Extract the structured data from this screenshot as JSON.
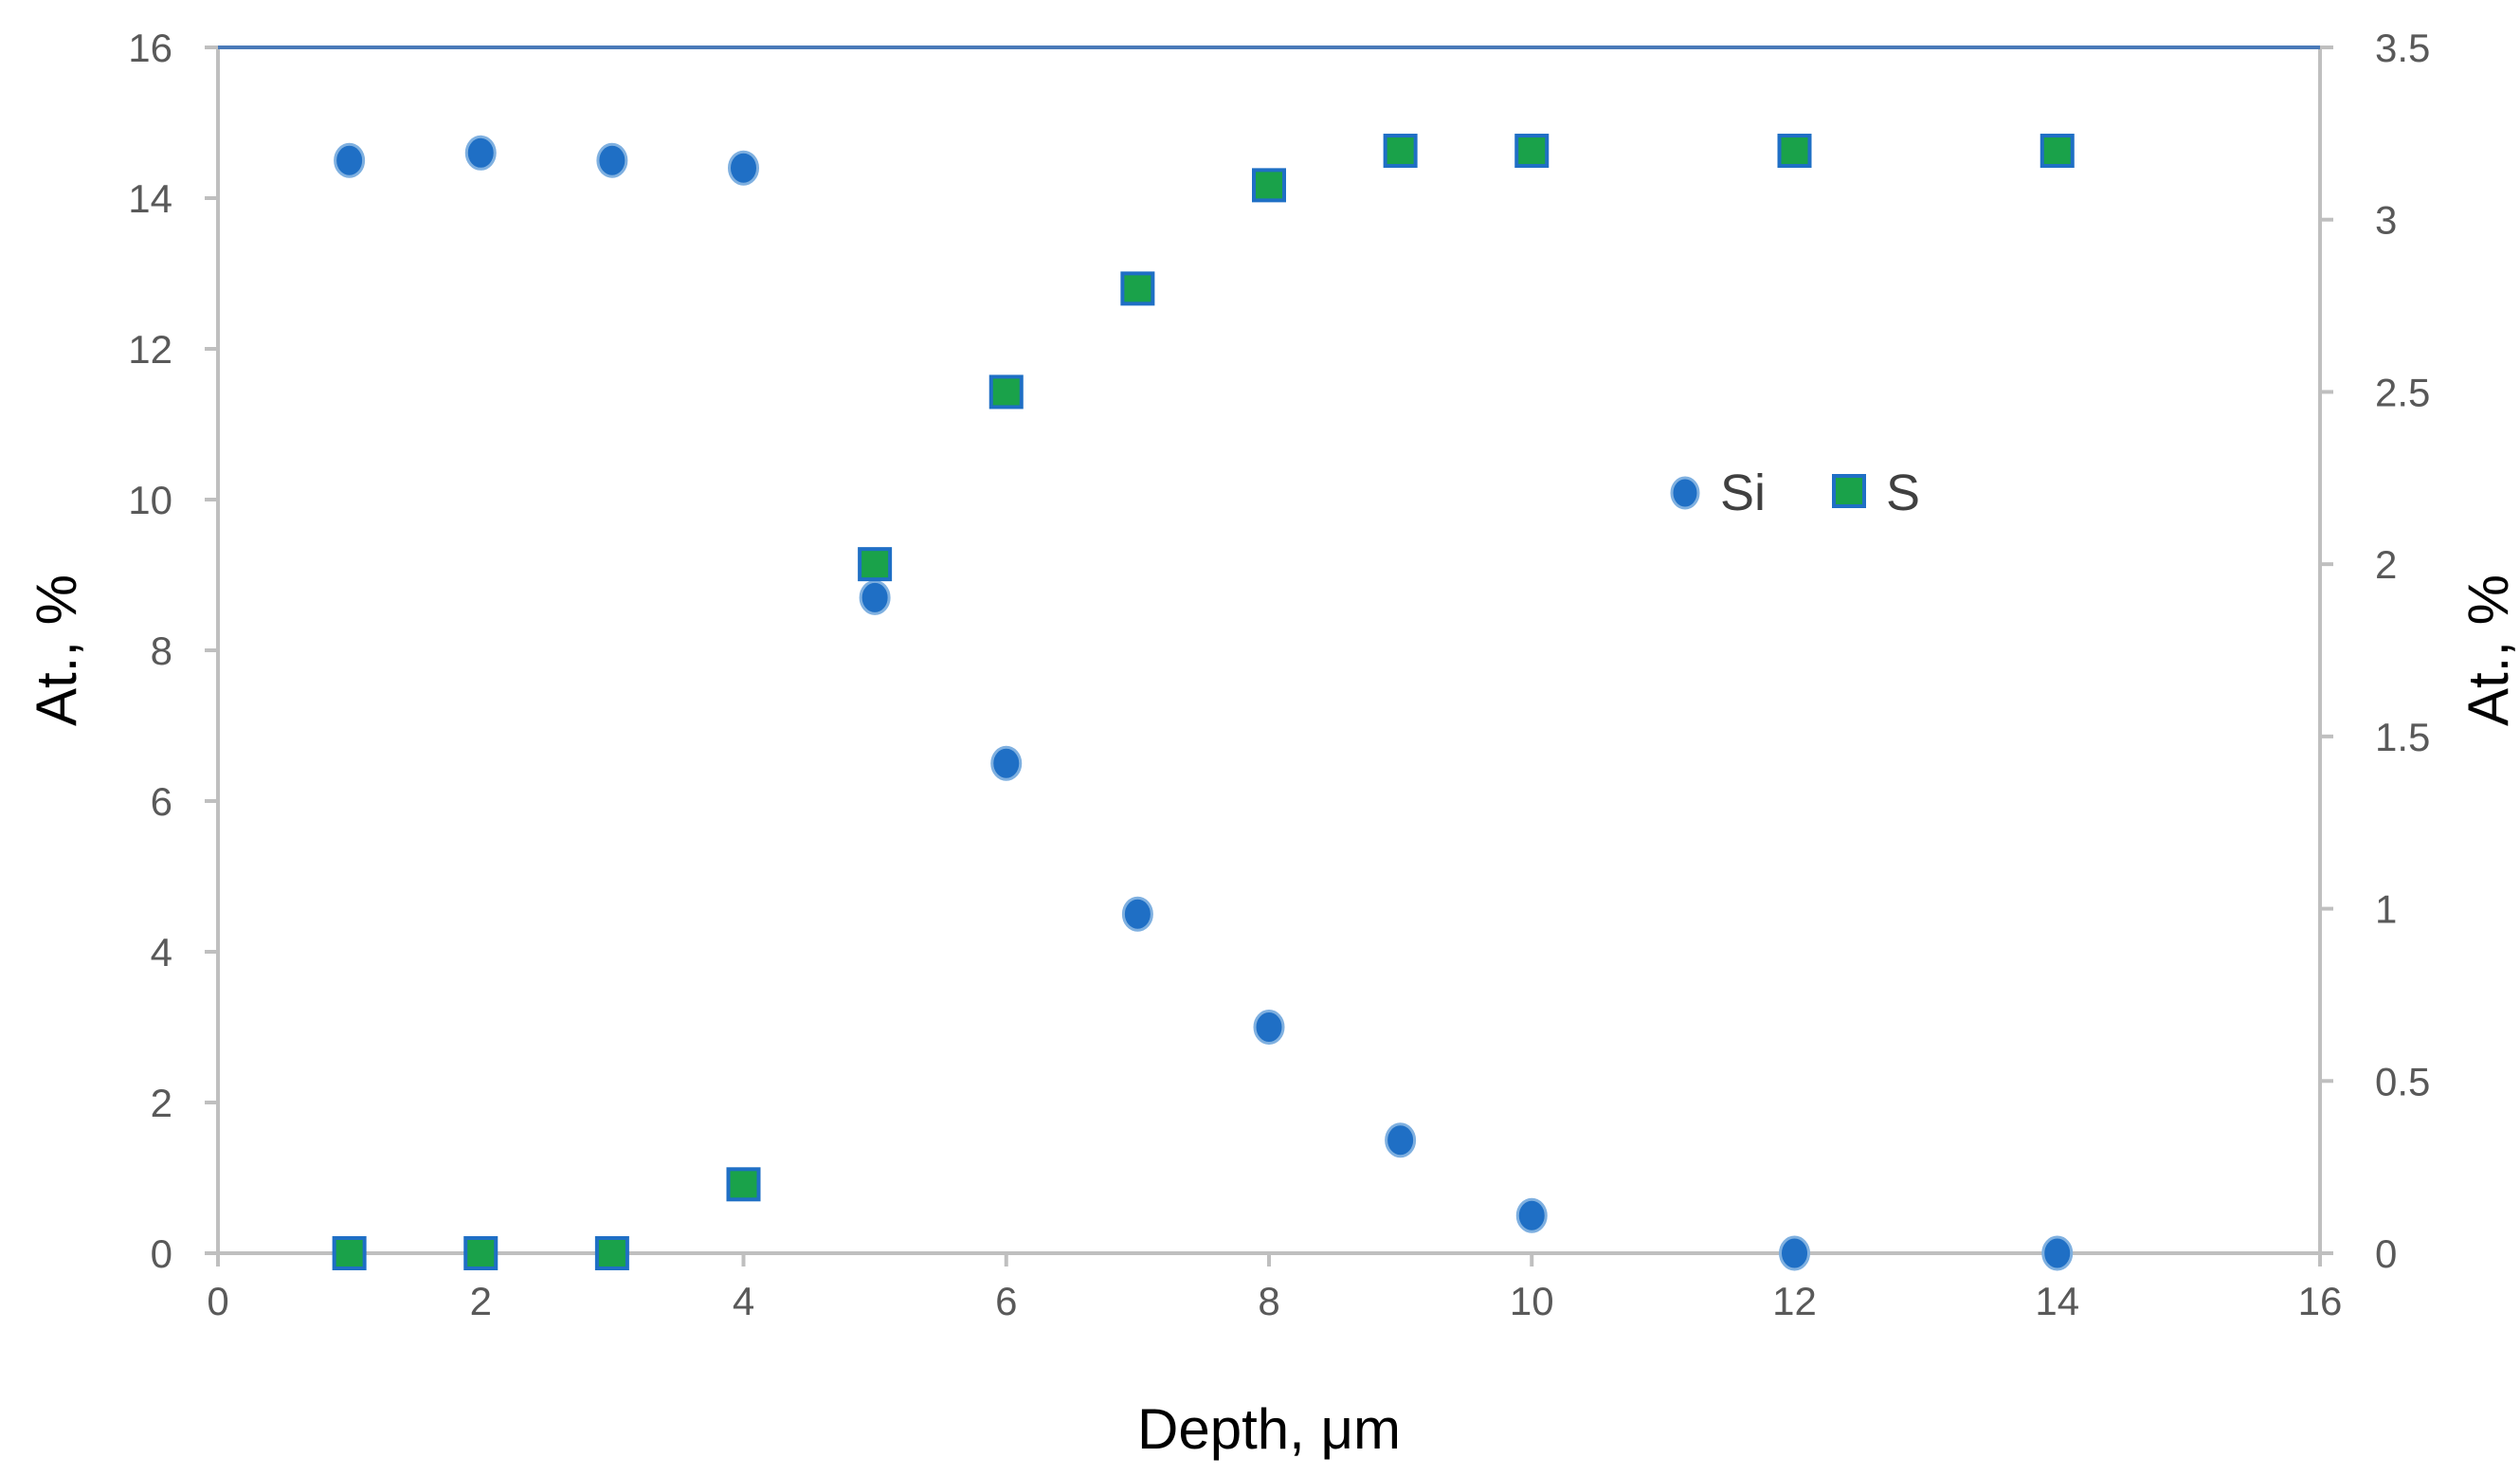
{
  "chart_data": {
    "type": "scatter",
    "xlabel": "Depth, μm",
    "ylabel": "At., %",
    "y2label": "At., %",
    "xlim": [
      0,
      16
    ],
    "ylim": [
      0,
      16
    ],
    "y2lim": [
      0,
      3.5
    ],
    "x_ticks": [
      "0",
      "2",
      "4",
      "6",
      "8",
      "10",
      "12",
      "14",
      "16"
    ],
    "y_ticks": [
      "0",
      "2",
      "4",
      "6",
      "8",
      "10",
      "12",
      "14",
      "16"
    ],
    "y2_ticks": [
      "0",
      "0.5",
      "1",
      "1.5",
      "2",
      "2.5",
      "3",
      "3.5"
    ],
    "grid": false,
    "legend_position": "right-center",
    "series": [
      {
        "name": "Si",
        "axis": "left",
        "marker": "circle",
        "color": "#1f6fc5",
        "points": [
          {
            "x": 1,
            "y": 14.5
          },
          {
            "x": 2,
            "y": 14.6
          },
          {
            "x": 3,
            "y": 14.5
          },
          {
            "x": 4,
            "y": 14.4
          },
          {
            "x": 5,
            "y": 8.7
          },
          {
            "x": 6,
            "y": 6.5
          },
          {
            "x": 7,
            "y": 4.5
          },
          {
            "x": 8,
            "y": 3.0
          },
          {
            "x": 9,
            "y": 1.5
          },
          {
            "x": 10,
            "y": 0.5
          },
          {
            "x": 12,
            "y": 0
          },
          {
            "x": 14,
            "y": 0
          }
        ]
      },
      {
        "name": "S",
        "axis": "right",
        "marker": "square",
        "color": "#1aa24a",
        "edge_color": "#1f6fc5",
        "points": [
          {
            "x": 1,
            "y": 0
          },
          {
            "x": 2,
            "y": 0
          },
          {
            "x": 3,
            "y": 0
          },
          {
            "x": 4,
            "y": 0.2
          },
          {
            "x": 5,
            "y": 2.0
          },
          {
            "x": 6,
            "y": 2.5
          },
          {
            "x": 7,
            "y": 2.8
          },
          {
            "x": 8,
            "y": 3.1
          },
          {
            "x": 9,
            "y": 3.2
          },
          {
            "x": 10,
            "y": 3.2
          },
          {
            "x": 12,
            "y": 3.2
          },
          {
            "x": 14,
            "y": 3.2
          }
        ]
      }
    ],
    "colors": {
      "axis_line": "#bfbfbf",
      "top_line": "#4a7ab8"
    }
  }
}
